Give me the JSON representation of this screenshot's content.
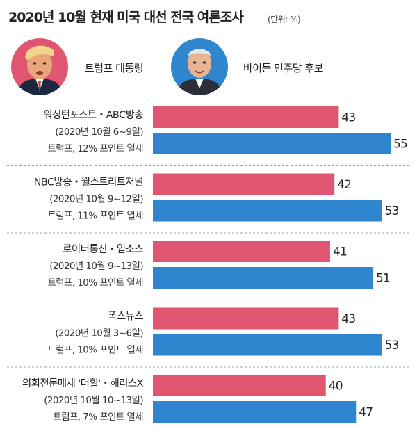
{
  "title": "2020년 10월 현재 미국 대선 전국 여론조사",
  "unit": "(단위: %)",
  "candidates": {
    "trump": {
      "name": "트럼프 대통령",
      "color": "#e05671",
      "icon": "trump-portrait-icon"
    },
    "biden": {
      "name": "바이든 민주당 후보",
      "color": "#2f86cf",
      "icon": "biden-portrait-icon"
    }
  },
  "chart_data": {
    "type": "bar",
    "orientation": "horizontal",
    "categories": [
      "워싱턴포스트・ABC방송",
      "NBC방송・월스트리트저널",
      "로이터통신・입소스",
      "폭스뉴스",
      "의회전문매체 '더힐'・해리스X"
    ],
    "dates": [
      "(2020년 10월 6~9일)",
      "(2020년 10월 9~12일)",
      "(2020년 10월 9~13일)",
      "(2020년 10월 3~6일)",
      "(2020년 10월 10~13일)"
    ],
    "notes": [
      "트럼프, 12% 포인트 열세",
      "트럼프, 11% 포인트 열세",
      "트럼프, 10% 포인트 열세",
      "트럼프, 10% 포인트 열세",
      "트럼프, 7% 포인트 열세"
    ],
    "series": [
      {
        "name": "트럼프 대통령",
        "color": "#e05671",
        "values": [
          43,
          42,
          41,
          43,
          40
        ]
      },
      {
        "name": "바이든 민주당 후보",
        "color": "#2f86cf",
        "values": [
          55,
          53,
          51,
          53,
          47
        ]
      }
    ],
    "xlim": [
      0,
      55
    ],
    "grid": false,
    "legend": "top"
  }
}
